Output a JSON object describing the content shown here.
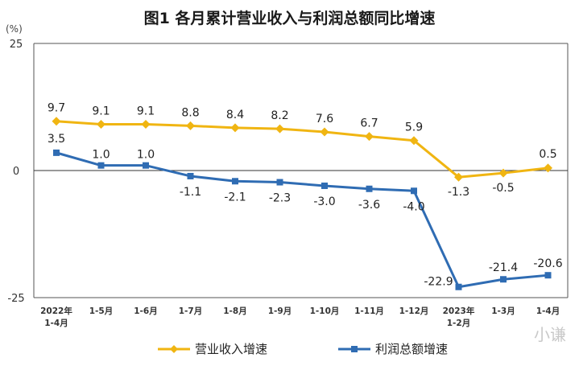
{
  "title": "图1  各月累计营业收入与利润总额同比增速",
  "unit_label": "(%)",
  "watermark": "小谦",
  "chart_data": {
    "type": "line",
    "title": "图1  各月累计营业收入与利润总额同比增速",
    "ylabel": "(%)",
    "ylim": [
      -25,
      25
    ],
    "yticks": [
      25,
      0,
      -25
    ],
    "grid": false,
    "legend_position": "bottom",
    "categories": [
      "2022年\n1-4月",
      "1-5月",
      "1-6月",
      "1-7月",
      "1-8月",
      "1-9月",
      "1-10月",
      "1-11月",
      "1-12月",
      "2023年\n1-2月",
      "1-3月",
      "1-4月"
    ],
    "series": [
      {
        "name": "营业收入增速",
        "color": "#f0b512",
        "values": [
          9.7,
          9.1,
          9.1,
          8.8,
          8.4,
          8.2,
          7.6,
          6.7,
          5.9,
          -1.3,
          -0.5,
          0.5
        ],
        "labels": [
          "9.7",
          "9.1",
          "9.1",
          "8.8",
          "8.4",
          "8.2",
          "7.6",
          "6.7",
          "5.9",
          "-1.3",
          "-0.5",
          "0.5"
        ]
      },
      {
        "name": "利润总额增速",
        "color": "#2f6cb3",
        "values": [
          3.5,
          1.0,
          1.0,
          -1.1,
          -2.1,
          -2.3,
          -3.0,
          -3.6,
          -4.0,
          -22.9,
          -21.4,
          -20.6
        ],
        "labels": [
          "3.5",
          "1.0",
          "1.0",
          "-1.1",
          "-2.1",
          "-2.3",
          "-3.0",
          "-3.6",
          "-4.0",
          "-22.9",
          "-21.4",
          "-20.6"
        ]
      }
    ]
  }
}
